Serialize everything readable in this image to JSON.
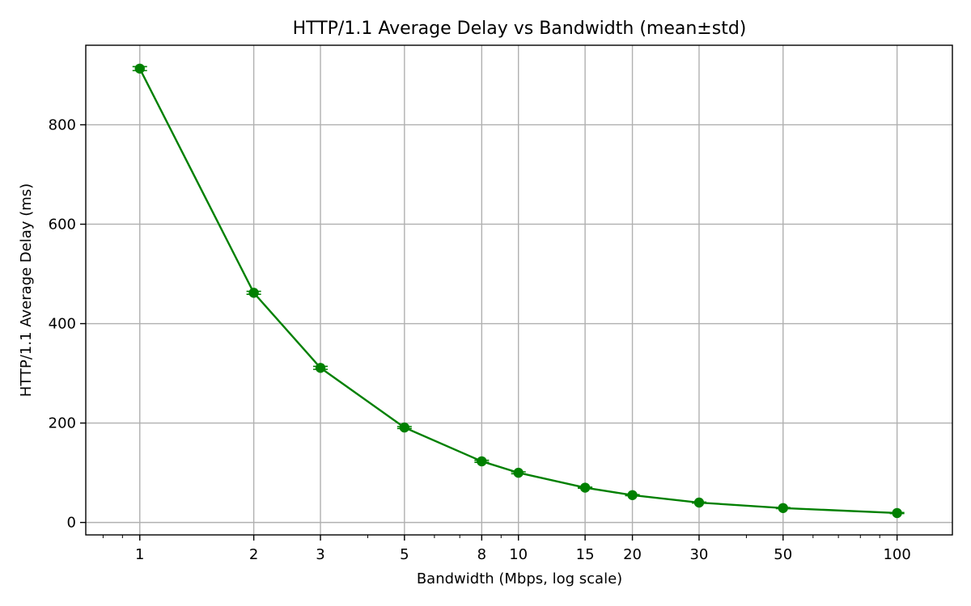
{
  "chart_data": {
    "type": "line",
    "title": "HTTP/1.1 Average Delay vs Bandwidth (mean±std)",
    "xlabel": "Bandwidth (Mbps, log scale)",
    "ylabel": "HTTP/1.1 Average Delay (ms)",
    "x_scale": "log",
    "xlim": [
      0.72,
      140
    ],
    "ylim": [
      -25,
      960
    ],
    "grid": true,
    "x_ticks": [
      {
        "value": 1,
        "label": "1"
      },
      {
        "value": 2,
        "label": "2"
      },
      {
        "value": 3,
        "label": "3"
      },
      {
        "value": 5,
        "label": "5"
      },
      {
        "value": 8,
        "label": "8"
      },
      {
        "value": 10,
        "label": "10"
      },
      {
        "value": 15,
        "label": "15"
      },
      {
        "value": 20,
        "label": "20"
      },
      {
        "value": 30,
        "label": "30"
      },
      {
        "value": 50,
        "label": "50"
      },
      {
        "value": 100,
        "label": "100"
      }
    ],
    "y_ticks": [
      {
        "value": 0,
        "label": "0"
      },
      {
        "value": 200,
        "label": "200"
      },
      {
        "value": 400,
        "label": "400"
      },
      {
        "value": 600,
        "label": "600"
      },
      {
        "value": 800,
        "label": "800"
      }
    ],
    "series": [
      {
        "color": "#008000",
        "marker": "circle",
        "error_bars": true,
        "x": [
          1,
          2,
          3,
          5,
          8,
          10,
          15,
          20,
          30,
          50,
          100
        ],
        "y": [
          913,
          462,
          311,
          191,
          123,
          100,
          70,
          55,
          40,
          29,
          19
        ],
        "std": [
          4,
          3,
          3,
          2,
          2,
          2,
          1,
          1,
          1,
          1,
          1
        ]
      }
    ]
  }
}
